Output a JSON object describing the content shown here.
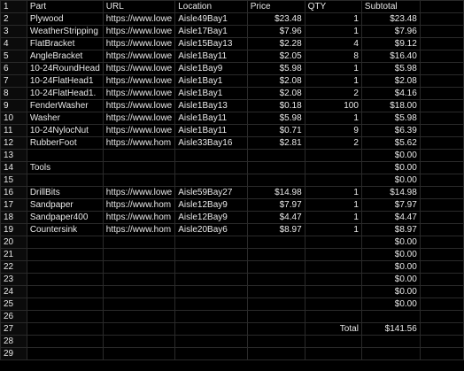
{
  "header": {
    "row_number": "1",
    "cols": [
      "Part",
      "URL",
      "Location",
      "Price",
      "QTY",
      "Subtotal",
      ""
    ]
  },
  "rows": [
    {
      "n": "2",
      "part": "Plywood",
      "url": "https://www.lowe",
      "location": "Aisle49Bay1",
      "price": "$23.48",
      "qty": "1",
      "subtotal": "$23.48"
    },
    {
      "n": "3",
      "part": "WeatherStripping",
      "url": "https://www.lowe",
      "location": "Aisle17Bay1",
      "price": "$7.96",
      "qty": "1",
      "subtotal": "$7.96"
    },
    {
      "n": "4",
      "part": "FlatBracket",
      "url": "https://www.lowe",
      "location": "Aisle15Bay13",
      "price": "$2.28",
      "qty": "4",
      "subtotal": "$9.12"
    },
    {
      "n": "5",
      "part": "AngleBracket",
      "url": "https://www.lowe",
      "location": "Aisle1Bay11",
      "price": "$2.05",
      "qty": "8",
      "subtotal": "$16.40"
    },
    {
      "n": "6",
      "part": "10-24RoundHead",
      "url": "https://www.lowe",
      "location": "Aisle1Bay9",
      "price": "$5.98",
      "qty": "1",
      "subtotal": "$5.98"
    },
    {
      "n": "7",
      "part": "10-24FlatHead1",
      "url": "https://www.lowe",
      "location": "Aisle1Bay1",
      "price": "$2.08",
      "qty": "1",
      "subtotal": "$2.08"
    },
    {
      "n": "8",
      "part": "10-24FlatHead1.",
      "url": "https://www.lowe",
      "location": "Aisle1Bay1",
      "price": "$2.08",
      "qty": "2",
      "subtotal": "$4.16"
    },
    {
      "n": "9",
      "part": "FenderWasher",
      "url": "https://www.lowe",
      "location": "Aisle1Bay13",
      "price": "$0.18",
      "qty": "100",
      "subtotal": "$18.00"
    },
    {
      "n": "10",
      "part": "Washer",
      "url": "https://www.lowe",
      "location": "Aisle1Bay11",
      "price": "$5.98",
      "qty": "1",
      "subtotal": "$5.98"
    },
    {
      "n": "11",
      "part": "10-24NylocNut",
      "url": "https://www.lowe",
      "location": "Aisle1Bay11",
      "price": "$0.71",
      "qty": "9",
      "subtotal": "$6.39"
    },
    {
      "n": "12",
      "part": "RubberFoot",
      "url": "https://www.hom",
      "location": "Aisle33Bay16",
      "price": "$2.81",
      "qty": "2",
      "subtotal": "$5.62"
    },
    {
      "n": "13",
      "part": "",
      "url": "",
      "location": "",
      "price": "",
      "qty": "",
      "subtotal": "$0.00"
    },
    {
      "n": "14",
      "part": "Tools",
      "url": "",
      "location": "",
      "price": "",
      "qty": "",
      "subtotal": "$0.00"
    },
    {
      "n": "15",
      "part": "",
      "url": "",
      "location": "",
      "price": "",
      "qty": "",
      "subtotal": "$0.00"
    },
    {
      "n": "16",
      "part": "DrillBits",
      "url": "https://www.lowe",
      "location": "Aisle59Bay27",
      "price": "$14.98",
      "qty": "1",
      "subtotal": "$14.98"
    },
    {
      "n": "17",
      "part": "Sandpaper",
      "url": "https://www.hom",
      "location": "Aisle12Bay9",
      "price": "$7.97",
      "qty": "1",
      "subtotal": "$7.97"
    },
    {
      "n": "18",
      "part": "Sandpaper400",
      "url": "https://www.hom",
      "location": "Aisle12Bay9",
      "price": "$4.47",
      "qty": "1",
      "subtotal": "$4.47"
    },
    {
      "n": "19",
      "part": "Countersink",
      "url": "https://www.hom",
      "location": "Aisle20Bay6",
      "price": "$8.97",
      "qty": "1",
      "subtotal": "$8.97"
    },
    {
      "n": "20",
      "part": "",
      "url": "",
      "location": "",
      "price": "",
      "qty": "",
      "subtotal": "$0.00"
    },
    {
      "n": "21",
      "part": "",
      "url": "",
      "location": "",
      "price": "",
      "qty": "",
      "subtotal": "$0.00"
    },
    {
      "n": "22",
      "part": "",
      "url": "",
      "location": "",
      "price": "",
      "qty": "",
      "subtotal": "$0.00"
    },
    {
      "n": "23",
      "part": "",
      "url": "",
      "location": "",
      "price": "",
      "qty": "",
      "subtotal": "$0.00"
    },
    {
      "n": "24",
      "part": "",
      "url": "",
      "location": "",
      "price": "",
      "qty": "",
      "subtotal": "$0.00"
    },
    {
      "n": "25",
      "part": "",
      "url": "",
      "location": "",
      "price": "",
      "qty": "",
      "subtotal": "$0.00"
    },
    {
      "n": "26",
      "part": "",
      "url": "",
      "location": "",
      "price": "",
      "qty": "",
      "subtotal": ""
    },
    {
      "n": "27",
      "part": "",
      "url": "",
      "location": "",
      "price": "",
      "qty": "Total",
      "subtotal": "$141.56"
    },
    {
      "n": "28",
      "part": "",
      "url": "",
      "location": "",
      "price": "",
      "qty": "",
      "subtotal": ""
    },
    {
      "n": "29",
      "part": "",
      "url": "",
      "location": "",
      "price": "",
      "qty": "",
      "subtotal": ""
    }
  ]
}
